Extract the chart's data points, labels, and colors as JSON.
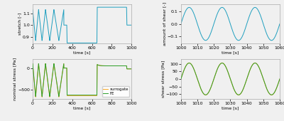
{
  "bg_color": "#f0f0f0",
  "line_color_blue": "#1f9fbf",
  "line_color_orange": "#f5a623",
  "line_color_green": "#2ca02c",
  "top_left": {
    "xlabel": "time [s]",
    "ylabel": "stretch [-]",
    "xlim": [
      0,
      1000
    ],
    "ylim": [
      0.845,
      1.175
    ],
    "yticks": [
      0.9,
      1.0,
      1.1
    ]
  },
  "top_right": {
    "xlabel": "time [s]",
    "ylabel": "amount of shear [-]",
    "xlim": [
      1000,
      1060
    ],
    "ylim": [
      -0.155,
      0.155
    ],
    "yticks": [
      -0.1,
      0.0,
      0.1
    ]
  },
  "bot_left": {
    "xlabel": "time [s]",
    "ylabel": "nominal stress [Pa]",
    "xlim": [
      0,
      1000
    ],
    "ylim": [
      -700,
      200
    ],
    "yticks": [
      -500,
      0
    ]
  },
  "bot_right": {
    "xlabel": "time [s]",
    "ylabel": "shear stress [Pa]",
    "xlim": [
      1000,
      1060
    ],
    "ylim": [
      -130,
      130
    ],
    "yticks": [
      -100,
      -50,
      0,
      50,
      100
    ]
  },
  "legend_labels": [
    "surrogate",
    "FE"
  ],
  "tl_xticks": [
    0,
    200,
    400,
    600,
    800,
    1000
  ],
  "tr_xticks": [
    1000,
    1010,
    1020,
    1030,
    1040,
    1050,
    1060
  ],
  "bl_xticks": [
    0,
    200,
    400,
    600,
    800,
    1000
  ],
  "br_xticks": [
    1000,
    1010,
    1020,
    1030,
    1040,
    1050,
    1060
  ]
}
